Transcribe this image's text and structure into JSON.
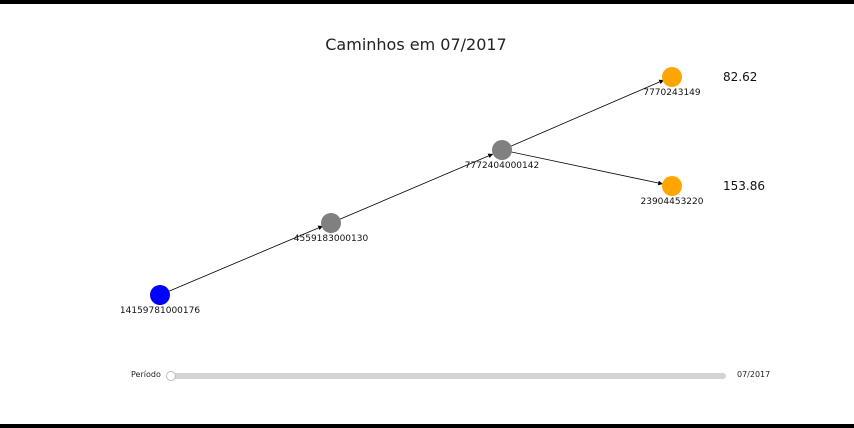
{
  "title": "Caminhos em 07/2017",
  "colors": {
    "origin": "#0000ff",
    "intermediate": "#808080",
    "destination": "#ffa500",
    "edge": "#000000"
  },
  "nodes": [
    {
      "id": "14159781000176",
      "role": "origin"
    },
    {
      "id": "4559183000130",
      "role": "intermediate"
    },
    {
      "id": "7772404000142",
      "role": "intermediate"
    },
    {
      "id": "7770243149",
      "role": "destination",
      "value": "82.62"
    },
    {
      "id": "23904453220",
      "role": "destination",
      "value": "153.86"
    }
  ],
  "edges": [
    {
      "from": "14159781000176",
      "to": "4559183000130"
    },
    {
      "from": "4559183000130",
      "to": "7772404000142"
    },
    {
      "from": "7772404000142",
      "to": "7770243149"
    },
    {
      "from": "7772404000142",
      "to": "23904453220"
    }
  ],
  "slider": {
    "label": "Período",
    "value": "07/2017"
  }
}
